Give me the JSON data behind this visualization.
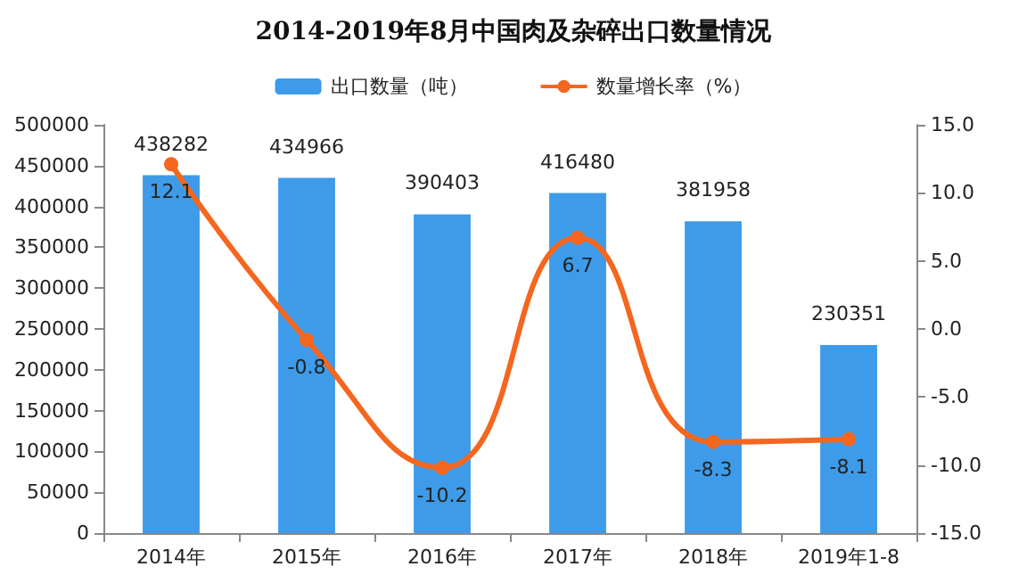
{
  "chart_data": {
    "type": "bar",
    "title": "2014-2019年8月中国肉及杂碎出口数量情况",
    "categories": [
      "2014年",
      "2015年",
      "2016年",
      "2017年",
      "2018年",
      "2019年1-8"
    ],
    "series": [
      {
        "name": "出口数量（吨）",
        "color": "#3d9be9",
        "values": [
          438282,
          434966,
          390403,
          416480,
          381958,
          230351
        ]
      },
      {
        "name": "数量增长率（%）",
        "type": "line",
        "axis": "y2",
        "color": "#f5661e",
        "values": [
          12.1,
          -0.8,
          -10.2,
          6.7,
          -8.3,
          -8.1
        ],
        "marker": "circle"
      }
    ],
    "ylim": [
      0,
      500000
    ],
    "yticks": [
      0,
      50000,
      100000,
      150000,
      200000,
      250000,
      300000,
      350000,
      400000,
      450000,
      500000
    ],
    "y2lim": [
      -15,
      15
    ],
    "y2ticks": [
      {
        "value": -15,
        "label": "-15.0"
      },
      {
        "value": -10,
        "label": "-10.0"
      },
      {
        "value": -5,
        "label": "-5.0"
      },
      {
        "value": 0,
        "label": "0.0"
      },
      {
        "value": 5,
        "label": "5.0"
      },
      {
        "value": 10,
        "label": "10.0"
      },
      {
        "value": 15,
        "label": "15.0"
      }
    ],
    "data_labels": true,
    "legend": "top",
    "grid": false
  }
}
